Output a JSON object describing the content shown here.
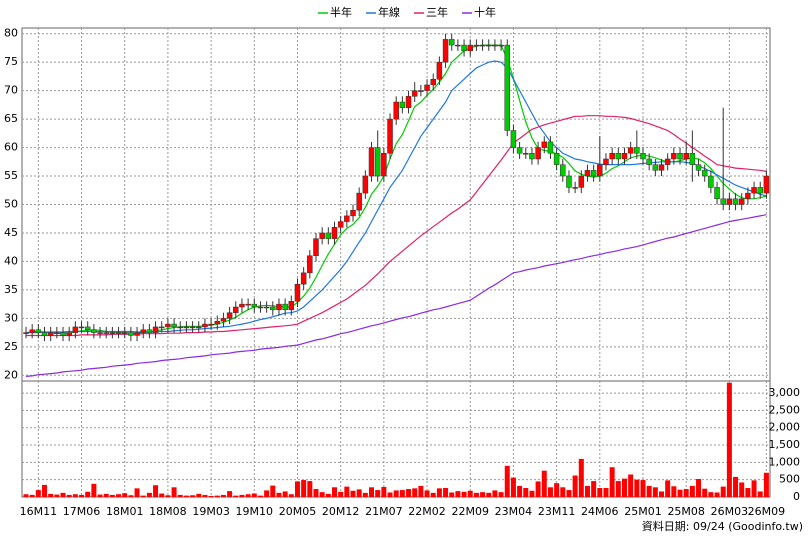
{
  "chart_data": {
    "type": "candlestick",
    "source": "資料日期: 09/24 (Goodinfo.tw)",
    "up_color": "#ff0000",
    "down_color": "#00cc00",
    "grid": true,
    "ylim": [
      19,
      81
    ],
    "yticks": [
      20,
      25,
      30,
      35,
      40,
      45,
      50,
      55,
      60,
      65,
      70,
      75,
      80
    ],
    "categories": [
      null,
      null,
      "16M11",
      null,
      null,
      null,
      null,
      null,
      null,
      "17M06",
      null,
      null,
      null,
      null,
      null,
      null,
      "18M01",
      null,
      null,
      null,
      null,
      null,
      null,
      "18M08",
      null,
      null,
      null,
      null,
      null,
      null,
      "19M03",
      null,
      null,
      null,
      null,
      null,
      null,
      "19M10",
      null,
      null,
      null,
      null,
      null,
      null,
      "20M05",
      null,
      null,
      null,
      null,
      null,
      null,
      "20M12",
      null,
      null,
      null,
      null,
      null,
      null,
      "21M07",
      null,
      null,
      null,
      null,
      null,
      null,
      "22M02",
      null,
      null,
      null,
      null,
      null,
      null,
      "22M09",
      null,
      null,
      null,
      null,
      null,
      null,
      "23M04",
      null,
      null,
      null,
      null,
      null,
      null,
      "23M11",
      null,
      null,
      null,
      null,
      null,
      null,
      "24M06",
      null,
      null,
      null,
      null,
      null,
      null,
      "25M01",
      null,
      null,
      null,
      null,
      null,
      null,
      "25M08",
      null,
      null,
      null,
      null,
      null,
      null,
      "26M03",
      null,
      null,
      null,
      null,
      null,
      "26M09"
    ],
    "open": [
      27.5,
      27.5,
      28,
      27.5,
      27,
      27.5,
      27.5,
      27,
      27.5,
      28.5,
      28.5,
      28,
      27.5,
      27.5,
      27.5,
      27.5,
      27.5,
      27.5,
      27,
      27.5,
      28,
      27.5,
      28.5,
      28.5,
      29,
      28.5,
      28.5,
      28.5,
      28.5,
      28.5,
      29,
      29,
      29.5,
      30,
      31,
      32,
      32.5,
      32.5,
      32,
      32,
      32,
      31.5,
      32.5,
      31.5,
      33,
      36,
      38,
      41,
      44,
      45,
      44,
      46,
      47,
      48,
      49,
      52,
      55,
      60,
      55,
      59,
      65,
      68,
      67,
      69,
      70,
      70,
      71,
      72,
      75,
      79,
      78,
      78,
      77,
      78,
      78,
      78,
      78,
      78,
      78,
      63,
      60,
      59,
      59,
      58,
      60,
      61,
      59,
      57,
      55,
      53,
      53,
      55,
      56,
      55,
      57,
      58,
      59,
      58,
      59,
      60,
      59,
      58,
      57,
      56,
      57,
      58,
      59,
      58,
      59,
      57,
      56,
      55,
      53,
      51,
      50,
      51,
      50,
      51,
      52,
      53,
      52
    ],
    "high": [
      28.5,
      29,
      29,
      28.5,
      28.5,
      28.5,
      28.5,
      28.5,
      29.5,
      29.5,
      29.5,
      29,
      28.5,
      28.5,
      28.5,
      28.5,
      28.5,
      28.5,
      28.5,
      29,
      29,
      29.5,
      29.5,
      30,
      30,
      29.5,
      29.5,
      29.5,
      29.5,
      30,
      30,
      30.5,
      31,
      32,
      33,
      33.5,
      33.5,
      33.5,
      33,
      33,
      33,
      33.5,
      33.5,
      34,
      37,
      39,
      42,
      45,
      46,
      46,
      47,
      48,
      49,
      50,
      53,
      56,
      61,
      63,
      60,
      66,
      69,
      69,
      70,
      71.5,
      71,
      72,
      73,
      76,
      80,
      80,
      79,
      79,
      79,
      79,
      79,
      79,
      79,
      79,
      79,
      64,
      61,
      60,
      60,
      61,
      62,
      62,
      60,
      58,
      56,
      54,
      56,
      57,
      57,
      62,
      59,
      60,
      60,
      60,
      61,
      63,
      60,
      59,
      58,
      58,
      59,
      60,
      60,
      61,
      63,
      58,
      57,
      56,
      54,
      67,
      52,
      52,
      52,
      53,
      54,
      54,
      56
    ],
    "low": [
      26.5,
      26.5,
      26.5,
      26,
      26,
      26.5,
      26,
      26,
      26.5,
      27.5,
      27,
      26.5,
      26.5,
      26.5,
      26.5,
      26.5,
      26.5,
      26,
      26,
      26.5,
      26.5,
      26.5,
      27.5,
      27.5,
      27.5,
      27.5,
      27.5,
      27.5,
      27.5,
      27.5,
      28,
      28,
      28.5,
      29,
      30,
      31,
      31.5,
      31,
      31,
      31,
      30.5,
      30.5,
      30.5,
      30.5,
      32,
      35,
      37,
      40,
      43,
      43,
      43,
      45,
      46,
      47,
      48,
      51,
      54,
      54,
      54,
      58,
      64,
      66,
      66,
      68,
      69,
      69,
      70,
      71,
      74,
      77,
      77,
      76,
      76,
      77,
      77,
      77,
      77,
      77,
      62,
      59,
      58,
      58,
      57,
      57,
      59,
      58,
      56,
      54,
      52,
      52,
      52,
      54,
      54,
      54,
      56,
      57,
      57,
      57,
      58,
      58,
      57,
      56,
      55,
      55,
      56,
      57,
      57,
      57,
      54,
      55,
      54,
      52,
      50,
      49,
      49,
      49,
      49,
      50,
      51,
      51,
      51
    ],
    "close": [
      27.5,
      28,
      27.5,
      27,
      27.5,
      27.5,
      27,
      27.5,
      28.5,
      28.5,
      28,
      27.5,
      27.5,
      27.5,
      27.5,
      27.5,
      27.5,
      27,
      27.5,
      28,
      27.5,
      28.5,
      28.5,
      29,
      28.5,
      28.5,
      28.5,
      28.5,
      28.5,
      29,
      29,
      29.5,
      30,
      31,
      32,
      32.5,
      32.5,
      32,
      32,
      32,
      31.5,
      32.5,
      31.5,
      33,
      36,
      38,
      41,
      44,
      45,
      44,
      46,
      47,
      48,
      49,
      52,
      55,
      60,
      55,
      59,
      65,
      68,
      67,
      69,
      70,
      70,
      71,
      72,
      75,
      79,
      78,
      78,
      77,
      78,
      78,
      78,
      78,
      78,
      78,
      63,
      60,
      59,
      59,
      58,
      60,
      61,
      59,
      57,
      55,
      53,
      53,
      55,
      56,
      55,
      57,
      58,
      59,
      58,
      59,
      60,
      59,
      58,
      57,
      56,
      57,
      58,
      59,
      58,
      59,
      57,
      56,
      55,
      53,
      51,
      50,
      51,
      50,
      51,
      52,
      53,
      52,
      55
    ],
    "series": [
      {
        "name": "半年",
        "color": "#00cc00",
        "values": [
          27.5,
          27.6,
          27.7,
          27.6,
          27.5,
          27.4,
          27.4,
          27.4,
          27.6,
          27.8,
          27.9,
          28,
          27.9,
          27.7,
          27.6,
          27.5,
          27.5,
          27.4,
          27.4,
          27.5,
          27.6,
          27.8,
          28,
          28.2,
          28.4,
          28.5,
          28.6,
          28.6,
          28.6,
          28.7,
          28.8,
          29,
          29.3,
          29.7,
          30.2,
          30.9,
          31.5,
          32,
          32.2,
          32.3,
          32.2,
          32.1,
          32,
          32,
          32.8,
          33.9,
          35.3,
          37.2,
          39.3,
          41.3,
          43,
          44.7,
          45.8,
          46.5,
          47.7,
          49.5,
          51.8,
          53.2,
          55,
          58,
          60.7,
          62.3,
          64.7,
          67.2,
          68,
          69.2,
          70.2,
          71.5,
          73,
          75,
          76,
          77,
          77.5,
          77.8,
          78,
          78,
          78,
          78,
          75.5,
          72.2,
          68.3,
          64.5,
          61.7,
          59.8,
          59.5,
          59.3,
          58.9,
          58.3,
          57.2,
          55.9,
          55.3,
          55,
          54.8,
          55,
          55.5,
          56.3,
          56.8,
          57.5,
          58.2,
          58.5,
          58.7,
          58.5,
          58.2,
          57.8,
          57.5,
          57.5,
          57.7,
          58,
          58.2,
          58,
          57.3,
          56.3,
          55,
          53.7,
          52.7,
          51.8,
          51.2,
          51,
          51,
          51.2,
          51.5
        ]
      },
      {
        "name": "年線",
        "color": "#1e78e6",
        "values": [
          27.5,
          27.5,
          27.5,
          27.6,
          27.6,
          27.6,
          27.6,
          27.7,
          27.7,
          27.7,
          27.7,
          27.7,
          27.7,
          27.7,
          27.7,
          27.7,
          27.7,
          27.7,
          27.6,
          27.6,
          27.6,
          27.6,
          27.7,
          27.7,
          27.8,
          27.9,
          28,
          28,
          28.1,
          28.2,
          28.3,
          28.4,
          28.5,
          28.6,
          28.8,
          29,
          29.2,
          29.5,
          29.8,
          30,
          30.3,
          30.6,
          30.9,
          31,
          31.3,
          32,
          33,
          34,
          35,
          36.2,
          37.4,
          38.6,
          40,
          41.7,
          43.4,
          45,
          47,
          49,
          51,
          53,
          54.5,
          56,
          58,
          60,
          62,
          63.5,
          65,
          66.5,
          68,
          70,
          71,
          72,
          73,
          74,
          74.5,
          75,
          75.2,
          75,
          74,
          72,
          70,
          68,
          66,
          64,
          62.5,
          61,
          60,
          59,
          58.5,
          58,
          57.8,
          57.5,
          57.3,
          57.1,
          57,
          57,
          57,
          57,
          57,
          57.1,
          57.2,
          57.3,
          57.4,
          57.5,
          57.5,
          57.5,
          57.5,
          57.4,
          57.2,
          56.8,
          56.3,
          55.8,
          55.2,
          54.6,
          54,
          53.4,
          53,
          52.6,
          52.2,
          51.8,
          51.5
        ]
      },
      {
        "name": "三年",
        "color": "#e0206a",
        "values": [
          27,
          27,
          27,
          27,
          27,
          27,
          27,
          27,
          27,
          27.1,
          27.1,
          27.1,
          27.1,
          27.1,
          27.2,
          27.2,
          27.2,
          27.2,
          27.2,
          27.3,
          27.3,
          27.3,
          27.3,
          27.4,
          27.4,
          27.4,
          27.5,
          27.5,
          27.5,
          27.6,
          27.6,
          27.7,
          27.7,
          27.8,
          27.9,
          28,
          28.1,
          28.2,
          28.3,
          28.4,
          28.5,
          28.6,
          28.7,
          28.8,
          29,
          29.5,
          30,
          30.5,
          31,
          31.6,
          32.2,
          32.8,
          33.4,
          34.2,
          35,
          35.8,
          36.8,
          37.8,
          38.9,
          40,
          40.9,
          41.8,
          42.7,
          43.6,
          44.5,
          45.3,
          46.1,
          46.9,
          47.7,
          48.5,
          49.2,
          50,
          50.8,
          52.2,
          53.6,
          55,
          56.4,
          57.8,
          59.3,
          60.8,
          61.6,
          62.4,
          63.2,
          63.6,
          64,
          64.3,
          64.6,
          64.9,
          65.2,
          65.5,
          65.5,
          65.6,
          65.6,
          65.6,
          65.5,
          65.5,
          65.4,
          65.3,
          65.1,
          64.8,
          64.5,
          64.2,
          63.8,
          63.4,
          63,
          62.3,
          61.5,
          60.8,
          60,
          59.3,
          58.5,
          57.8,
          57,
          56.8,
          56.6,
          56.4,
          56.3,
          56.2,
          56.1,
          56,
          55.8
        ]
      },
      {
        "name": "十年",
        "color": "#8a2be2",
        "values": [
          19.8,
          19.9,
          20.1,
          20.2,
          20.3,
          20.4,
          20.6,
          20.7,
          20.8,
          20.9,
          21.1,
          21.2,
          21.3,
          21.4,
          21.6,
          21.7,
          21.8,
          21.9,
          22.1,
          22.2,
          22.3,
          22.4,
          22.6,
          22.7,
          22.8,
          22.9,
          23.1,
          23.2,
          23.3,
          23.4,
          23.6,
          23.7,
          23.8,
          23.9,
          24.1,
          24.2,
          24.3,
          24.4,
          24.6,
          24.7,
          24.8,
          24.9,
          25.1,
          25.2,
          25.3,
          25.6,
          25.9,
          26.2,
          26.4,
          26.7,
          27,
          27.3,
          27.5,
          27.8,
          28.1,
          28.4,
          28.7,
          28.9,
          29.2,
          29.5,
          29.8,
          30.1,
          30.3,
          30.6,
          30.9,
          31.2,
          31.5,
          31.7,
          32,
          32.3,
          32.6,
          32.9,
          33.2,
          33.9,
          34.6,
          35.3,
          35.9,
          36.6,
          37.3,
          38,
          38.2,
          38.5,
          38.7,
          38.9,
          39.2,
          39.4,
          39.6,
          39.8,
          40.1,
          40.3,
          40.5,
          40.8,
          41,
          41.2,
          41.5,
          41.7,
          41.9,
          42.2,
          42.4,
          42.6,
          42.9,
          43.2,
          43.5,
          43.8,
          44.1,
          44.3,
          44.6,
          44.9,
          45.2,
          45.5,
          45.8,
          46.1,
          46.4,
          46.7,
          47,
          47.2,
          47.4,
          47.6,
          47.8,
          48,
          48.2
        ]
      }
    ],
    "volume": {
      "color": "#ff0000",
      "ylim": [
        0,
        3350
      ],
      "yticks": [
        0,
        500,
        {
          "value": 1000,
          "label": "1,000"
        },
        {
          "value": 1500,
          "label": "1,500"
        },
        {
          "value": 2000,
          "label": "2,000"
        },
        {
          "value": 2500,
          "label": "2,500"
        },
        {
          "value": 3000,
          "label": "3,000"
        }
      ],
      "values": [
        80,
        60,
        200,
        350,
        90,
        70,
        120,
        60,
        80,
        60,
        150,
        380,
        70,
        90,
        60,
        80,
        110,
        50,
        250,
        40,
        120,
        340,
        100,
        50,
        280,
        60,
        40,
        50,
        90,
        60,
        30,
        40,
        60,
        170,
        40,
        60,
        80,
        100,
        40,
        190,
        330,
        120,
        160,
        80,
        450,
        490,
        460,
        230,
        140,
        90,
        280,
        150,
        300,
        180,
        220,
        120,
        280,
        200,
        290,
        130,
        190,
        200,
        230,
        250,
        320,
        190,
        120,
        250,
        260,
        130,
        170,
        150,
        180,
        120,
        140,
        120,
        190,
        140,
        900,
        560,
        320,
        260,
        180,
        450,
        760,
        280,
        400,
        280,
        200,
        620,
        1100,
        320,
        460,
        260,
        260,
        860,
        460,
        530,
        650,
        500,
        490,
        320,
        280,
        160,
        480,
        310,
        210,
        230,
        320,
        520,
        240,
        140,
        130,
        300,
        3300,
        580,
        420,
        260,
        480,
        160,
        700
      ]
    }
  }
}
